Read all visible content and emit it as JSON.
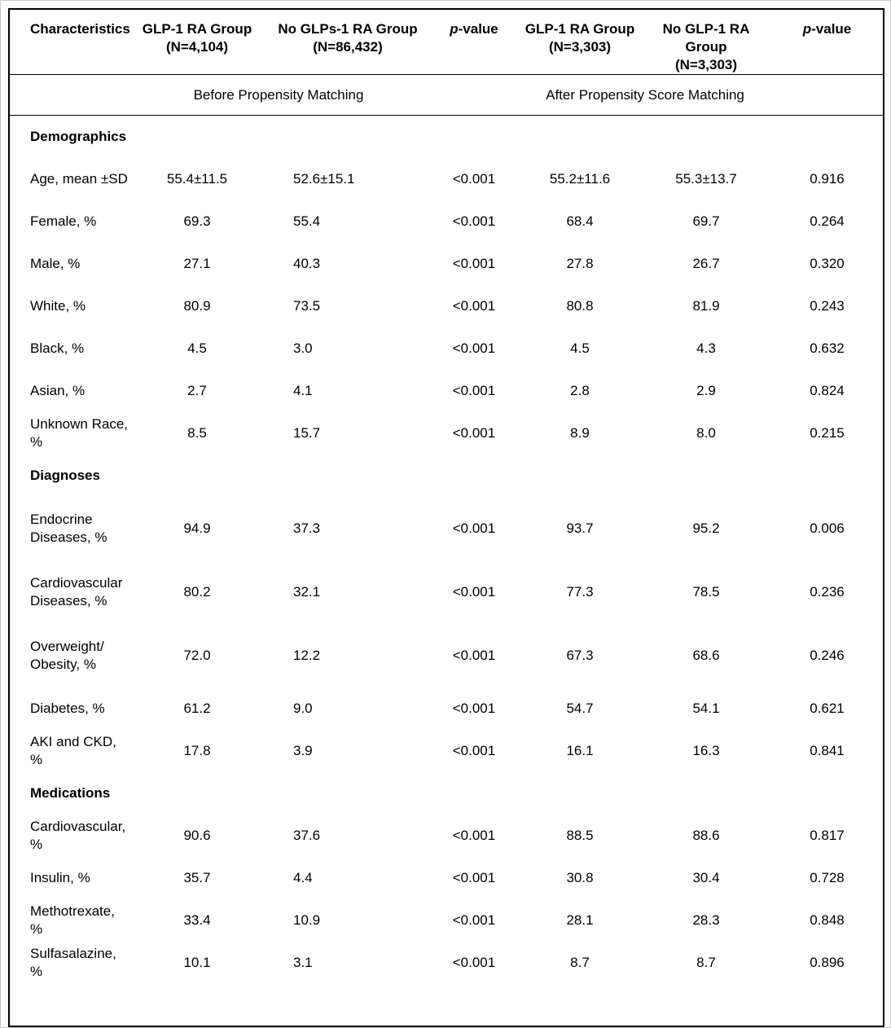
{
  "table": {
    "columns": [
      {
        "label": "Characteristics",
        "sub": ""
      },
      {
        "label": "GLP-1 RA Group",
        "sub": "(N=4,104)"
      },
      {
        "label": "No GLPs-1 RA Group",
        "sub": "(N=86,432)"
      },
      {
        "label": "p-value",
        "sub": "",
        "italic_prefix": "p"
      },
      {
        "label": "GLP-1 RA Group",
        "sub": "(N=3,303)"
      },
      {
        "label": "No GLP-1 RA Group",
        "sub": "(N=3,303)"
      },
      {
        "label": "p-value",
        "sub": "",
        "italic_prefix": "p"
      }
    ],
    "group_labels": [
      "Before Propensity Matching",
      "After Propensity Score Matching"
    ],
    "sections": [
      {
        "title": "Demographics",
        "rows": [
          {
            "label": "Age, mean ±SD",
            "values": [
              "55.4±11.5",
              "52.6±15.1",
              "<0.001",
              "55.2±11.6",
              "55.3±13.7",
              "0.916"
            ]
          },
          {
            "label": "Female, %",
            "values": [
              "69.3",
              "55.4",
              "<0.001",
              "68.4",
              "69.7",
              "0.264"
            ]
          },
          {
            "label": "Male, %",
            "values": [
              "27.1",
              "40.3",
              "<0.001",
              "27.8",
              "26.7",
              "0.320"
            ]
          },
          {
            "label": "White, %",
            "values": [
              "80.9",
              "73.5",
              "<0.001",
              "80.8",
              "81.9",
              "0.243"
            ]
          },
          {
            "label": "Black, %",
            "values": [
              "4.5",
              "3.0",
              "<0.001",
              "4.5",
              "4.3",
              "0.632"
            ]
          },
          {
            "label": "Asian, %",
            "values": [
              "2.7",
              "4.1",
              "<0.001",
              "2.8",
              "2.9",
              "0.824"
            ]
          },
          {
            "label": "Unknown Race, %",
            "values": [
              "8.5",
              "15.7",
              "<0.001",
              "8.9",
              "8.0",
              "0.215"
            ]
          }
        ]
      },
      {
        "title": "Diagnoses",
        "rows": [
          {
            "label": "Endocrine\nDiseases, %",
            "values": [
              "94.9",
              "37.3",
              "<0.001",
              "93.7",
              "95.2",
              "0.006"
            ]
          },
          {
            "label": "Cardiovascular\nDiseases, %",
            "values": [
              "80.2",
              "32.1",
              "<0.001",
              "77.3",
              "78.5",
              "0.236"
            ]
          },
          {
            "label": "Overweight/\nObesity, %",
            "values": [
              "72.0",
              "12.2",
              "<0.001",
              "67.3",
              "68.6",
              "0.246"
            ]
          },
          {
            "label": "Diabetes, %",
            "values": [
              "61.2",
              "9.0",
              "<0.001",
              "54.7",
              "54.1",
              "0.621"
            ]
          },
          {
            "label": "AKI and CKD, %",
            "values": [
              "17.8",
              "3.9",
              "<0.001",
              "16.1",
              "16.3",
              "0.841"
            ]
          }
        ]
      },
      {
        "title": "Medications",
        "rows": [
          {
            "label": "Cardiovascular, %",
            "values": [
              "90.6",
              "37.6",
              "<0.001",
              "88.5",
              "88.6",
              "0.817"
            ]
          },
          {
            "label": "Insulin, %",
            "values": [
              "35.7",
              "4.4",
              "<0.001",
              "30.8",
              "30.4",
              "0.728"
            ]
          },
          {
            "label": "Methotrexate, %",
            "values": [
              "33.4",
              "10.9",
              "<0.001",
              "28.1",
              "28.3",
              "0.848"
            ]
          },
          {
            "label": "Sulfasalazine, %",
            "values": [
              "10.1",
              "3.1",
              "<0.001",
              "8.7",
              "8.7",
              "0.896"
            ]
          }
        ]
      }
    ]
  }
}
